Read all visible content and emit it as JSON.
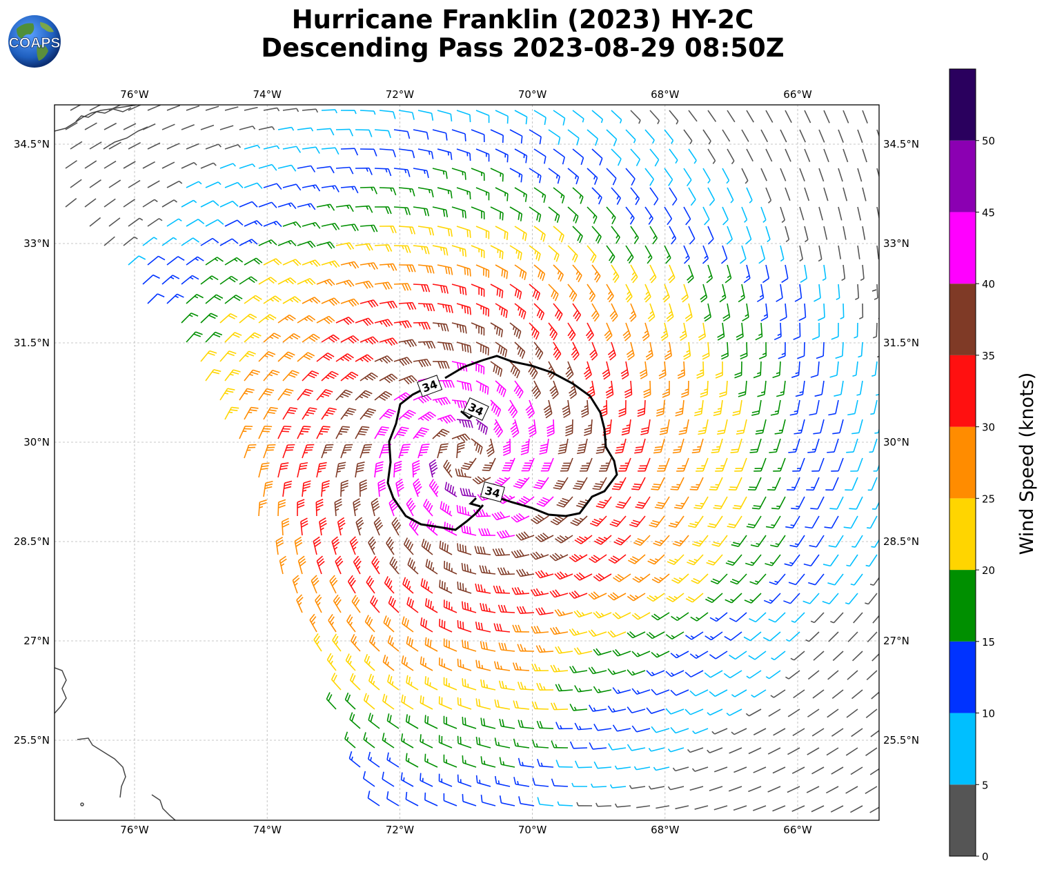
{
  "title": {
    "line1": "Hurricane Franklin (2023) HY-2C",
    "line2": "Descending Pass 2023-08-29 08:50Z"
  },
  "logo": {
    "text": "COAPS",
    "icon": "globe-logo-icon"
  },
  "map": {
    "lon_range": [
      -77.2,
      -64.8
    ],
    "lat_range": [
      23.9,
      34.7
    ],
    "lon_ticks": [
      {
        "value": -76,
        "label": "76°W"
      },
      {
        "value": -74,
        "label": "74°W"
      },
      {
        "value": -72,
        "label": "72°W"
      },
      {
        "value": -70,
        "label": "70°W"
      },
      {
        "value": -68,
        "label": "68°W"
      },
      {
        "value": -66,
        "label": "66°W"
      }
    ],
    "lat_ticks": [
      {
        "value": 34.5,
        "label": "34.5°N"
      },
      {
        "value": 33.0,
        "label": "33°N"
      },
      {
        "value": 31.5,
        "label": "31.5°N"
      },
      {
        "value": 30.0,
        "label": "30°N"
      },
      {
        "value": 28.5,
        "label": "28.5°N"
      },
      {
        "value": 27.0,
        "label": "27°N"
      },
      {
        "value": 25.5,
        "label": "25.5°N"
      }
    ],
    "gridlines": true,
    "storm_center": {
      "lon": -71.0,
      "lat": 29.8
    },
    "contour_value": 34,
    "contour_labels": [
      {
        "text": "34",
        "lon": -71.55,
        "lat": 30.85,
        "angle": -20
      },
      {
        "text": "34",
        "lon": -70.85,
        "lat": 30.5,
        "angle": 25
      },
      {
        "text": "34",
        "lon": -70.6,
        "lat": 29.25,
        "angle": 15
      }
    ]
  },
  "colorbar": {
    "label": "Wind Speed (knots)",
    "bins": [
      {
        "min": 0,
        "max": 5,
        "color": "#555555"
      },
      {
        "min": 5,
        "max": 10,
        "color": "#00bfff"
      },
      {
        "min": 10,
        "max": 15,
        "color": "#0033ff"
      },
      {
        "min": 15,
        "max": 20,
        "color": "#008f00"
      },
      {
        "min": 20,
        "max": 25,
        "color": "#ffd500"
      },
      {
        "min": 25,
        "max": 30,
        "color": "#ff8c00"
      },
      {
        "min": 30,
        "max": 35,
        "color": "#ff1010"
      },
      {
        "min": 35,
        "max": 40,
        "color": "#7f3a26"
      },
      {
        "min": 40,
        "max": 45,
        "color": "#ff00ff"
      },
      {
        "min": 45,
        "max": 50,
        "color": "#8b00b2"
      },
      {
        "min": 50,
        "max": 55,
        "color": "#2a005e"
      }
    ],
    "ticks": [
      "0",
      "5",
      "10",
      "15",
      "20",
      "25",
      "30",
      "35",
      "40",
      "45",
      "50"
    ]
  }
}
